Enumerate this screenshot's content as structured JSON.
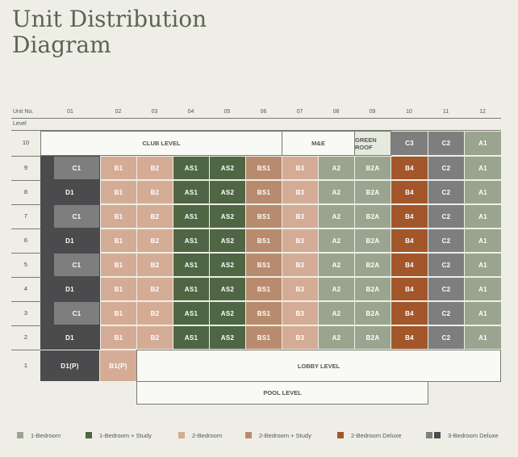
{
  "title": {
    "line1": "Unit Distribution",
    "line2": "Diagram"
  },
  "header": {
    "unit_no_label": "Unit No.",
    "level_label": "Level",
    "units": [
      "01",
      "02",
      "03",
      "04",
      "05",
      "06",
      "07",
      "08",
      "09",
      "10",
      "11",
      "12"
    ]
  },
  "colors": {
    "1-bedroom": "#9aa58f",
    "1-bedroom-study": "#4f6645",
    "2-bedroom": "#d4ac96",
    "2-bedroom-study": "#b98b6e",
    "2-bedroom-deluxe": "#a3562a",
    "3-bedroom-deluxe-light": "#7e7e7e",
    "3-bedroom-deluxe-dark": "#4b4b4d"
  },
  "floors": [
    {
      "level": "10",
      "units": []
    },
    {
      "level": "9",
      "units": [
        "C1",
        "B1",
        "B2",
        "AS1",
        "AS2",
        "BS1",
        "B3",
        "A2",
        "B2A",
        "B4",
        "C2",
        "A1"
      ]
    },
    {
      "level": "8",
      "units": [
        "D1",
        "B1",
        "B2",
        "AS1",
        "AS2",
        "BS1",
        "B3",
        "A2",
        "B2A",
        "B4",
        "C2",
        "A1"
      ]
    },
    {
      "level": "7",
      "units": [
        "C1",
        "B1",
        "B2",
        "AS1",
        "AS2",
        "BS1",
        "B3",
        "A2",
        "B2A",
        "B4",
        "C2",
        "A1"
      ]
    },
    {
      "level": "6",
      "units": [
        "D1",
        "B1",
        "B2",
        "AS1",
        "AS2",
        "BS1",
        "B3",
        "A2",
        "B2A",
        "B4",
        "C2",
        "A1"
      ]
    },
    {
      "level": "5",
      "units": [
        "C1",
        "B1",
        "B2",
        "AS1",
        "AS2",
        "BS1",
        "B3",
        "A2",
        "B2A",
        "B4",
        "C2",
        "A1"
      ]
    },
    {
      "level": "4",
      "units": [
        "D1",
        "B1",
        "B2",
        "AS1",
        "AS2",
        "BS1",
        "B3",
        "A2",
        "B2A",
        "B4",
        "C2",
        "A1"
      ]
    },
    {
      "level": "3",
      "units": [
        "C1",
        "B1",
        "B2",
        "AS1",
        "AS2",
        "BS1",
        "B3",
        "A2",
        "B2A",
        "B4",
        "C2",
        "A1"
      ]
    },
    {
      "level": "2",
      "units": [
        "D1",
        "B1",
        "B2",
        "AS1",
        "AS2",
        "BS1",
        "B3",
        "A2",
        "B2A",
        "B4",
        "C2",
        "A1"
      ]
    },
    {
      "level": "1",
      "units": [
        "D1(P)",
        "B1(P)"
      ]
    }
  ],
  "level10": {
    "club_level": "CLUB LEVEL",
    "me": "M&E",
    "green_roof": "GREEN ROOF",
    "units": [
      "C3",
      "C2",
      "A1"
    ]
  },
  "lobby_level": "LOBBY LEVEL",
  "pool_level": "POOL LEVEL",
  "legend": [
    {
      "label": "1-Bedroom",
      "colors": [
        "#9aa58f"
      ]
    },
    {
      "label": "1-Bedroom + Study",
      "colors": [
        "#4f6645"
      ]
    },
    {
      "label": "2-Bedroom",
      "colors": [
        "#d4ac96"
      ]
    },
    {
      "label": "2-Bedroom + Study",
      "colors": [
        "#b98b6e"
      ]
    },
    {
      "label": "2-Bedroom Deluxe",
      "colors": [
        "#a3562a"
      ]
    },
    {
      "label": "3-Bedroom Deluxe",
      "colors": [
        "#7e7e7e",
        "#4b4b4d"
      ]
    }
  ]
}
